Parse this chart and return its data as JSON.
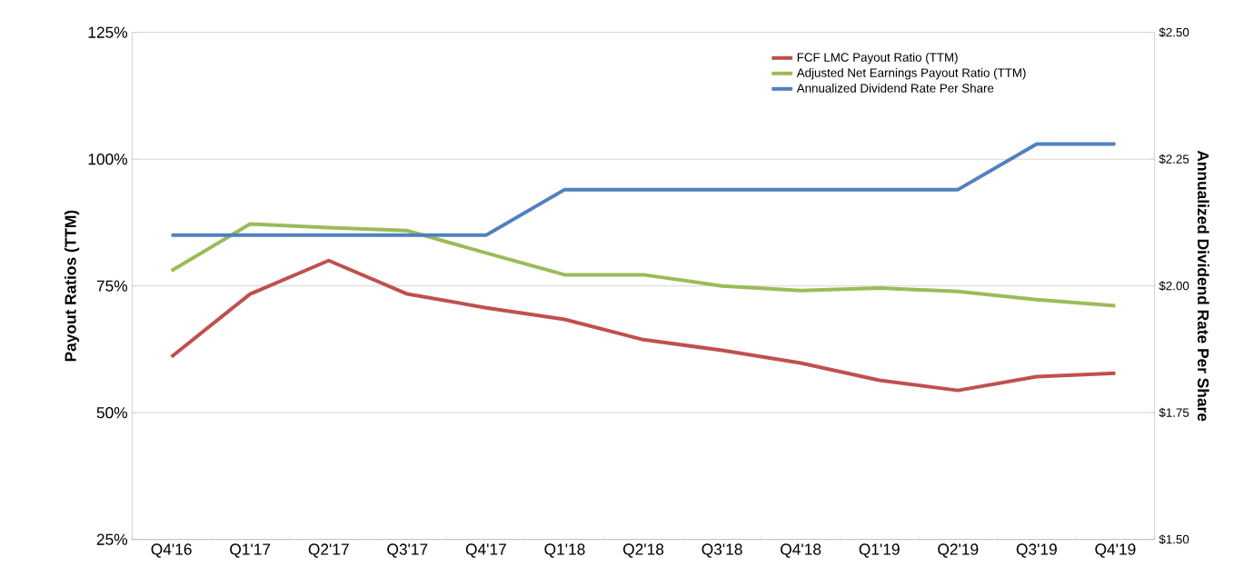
{
  "chart_data": {
    "type": "line",
    "ylabel": "Payout Ratios (TTM)",
    "y2label": "Annualized Dividend Rate Per Share",
    "categories": [
      "Q4'16",
      "Q1'17",
      "Q2'17",
      "Q3'17",
      "Q4'17",
      "Q1'18",
      "Q2'18",
      "Q3'18",
      "Q4'18",
      "Q1'19",
      "Q2'19",
      "Q3'19",
      "Q4'19"
    ],
    "series": [
      {
        "name": "FCF LMC Payout Ratio (TTM)",
        "color": "#c0504d",
        "values": [
          61,
          73.4,
          80,
          73.4,
          70.7,
          68.4,
          64.4,
          62.3,
          59.8,
          56.4,
          54.4,
          57.1,
          57.8
        ]
      },
      {
        "name": "Adjusted Net Earnings Payout Ratio (TTM)",
        "color": "#9bbb59",
        "values": [
          78,
          87.2,
          86.5,
          85.9,
          81.5,
          77.2,
          77.2,
          75,
          74.1,
          74.6,
          73.9,
          72.3,
          71.1
        ]
      },
      {
        "name": "Annualized Dividend Rate Per Share",
        "color": "#4f81bd",
        "axis": "y2",
        "values": [
          2.1,
          2.1,
          2.1,
          2.1,
          2.1,
          2.19,
          2.19,
          2.19,
          2.19,
          2.19,
          2.19,
          2.28,
          2.28
        ]
      }
    ],
    "ylim": [
      25,
      125
    ],
    "yticks": [
      {
        "value": 25,
        "label": "25%"
      },
      {
        "value": 50,
        "label": "50%"
      },
      {
        "value": 75,
        "label": "75%"
      },
      {
        "value": 100,
        "label": "100%"
      },
      {
        "value": 125,
        "label": "125%"
      }
    ],
    "y2lim": [
      1.5,
      2.5
    ],
    "y2ticks": [
      {
        "value": 1.5,
        "label": "$1.50"
      },
      {
        "value": 1.75,
        "label": "$1.75"
      },
      {
        "value": 2.0,
        "label": "$2.00"
      },
      {
        "value": 2.25,
        "label": "$2.25"
      },
      {
        "value": 2.5,
        "label": "$2.50"
      }
    ],
    "grid": "y",
    "legend": "top right",
    "marker": "none",
    "line_style": "solid"
  }
}
